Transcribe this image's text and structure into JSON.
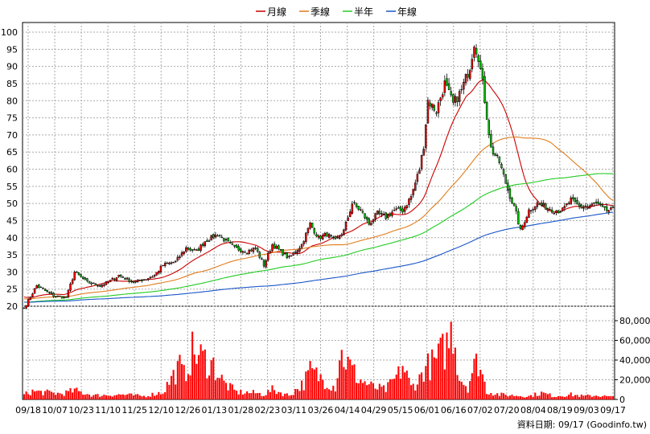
{
  "chart_data": {
    "type": "candlestick",
    "legend": [
      {
        "name": "月線",
        "color": "#cc0000"
      },
      {
        "name": "季線",
        "color": "#e07b1a"
      },
      {
        "name": "半年",
        "color": "#22cc22"
      },
      {
        "name": "年線",
        "color": "#1a56c8"
      }
    ],
    "price_axis": {
      "min": 20,
      "max": 100,
      "ticks": [
        20,
        25,
        30,
        35,
        40,
        45,
        50,
        55,
        60,
        65,
        70,
        75,
        80,
        85,
        90,
        95,
        100
      ]
    },
    "volume_axis": {
      "min": 0,
      "max": 80000,
      "ticks": [
        0,
        20000,
        40000,
        60000,
        80000
      ],
      "tick_labels": [
        "0",
        "20,000",
        "40,000",
        "60,000",
        "80,000"
      ]
    },
    "x_labels": [
      "09/18",
      "10/07",
      "10/23",
      "11/10",
      "11/25",
      "12/10",
      "12/26",
      "01/13",
      "01/28",
      "02/23",
      "03/11",
      "03/26",
      "04/14",
      "04/29",
      "05/15",
      "06/01",
      "06/16",
      "07/02",
      "07/20",
      "08/04",
      "08/19",
      "09/03",
      "09/17"
    ],
    "close_anchors": [
      [
        0,
        19.5
      ],
      [
        6,
        26
      ],
      [
        14,
        23
      ],
      [
        20,
        22.5
      ],
      [
        24,
        30
      ],
      [
        30,
        27
      ],
      [
        36,
        26
      ],
      [
        40,
        27
      ],
      [
        45,
        29
      ],
      [
        52,
        27
      ],
      [
        58,
        28
      ],
      [
        62,
        29
      ],
      [
        66,
        32
      ],
      [
        72,
        33
      ],
      [
        77,
        37
      ],
      [
        82,
        36
      ],
      [
        86,
        39
      ],
      [
        92,
        41
      ],
      [
        96,
        39
      ],
      [
        100,
        37
      ],
      [
        106,
        36
      ],
      [
        110,
        37
      ],
      [
        114,
        32
      ],
      [
        118,
        38
      ],
      [
        122,
        36
      ],
      [
        126,
        34
      ],
      [
        132,
        38
      ],
      [
        136,
        44
      ],
      [
        140,
        40
      ],
      [
        144,
        41
      ],
      [
        148,
        39
      ],
      [
        152,
        42
      ],
      [
        156,
        50
      ],
      [
        160,
        48
      ],
      [
        164,
        44
      ],
      [
        168,
        47
      ],
      [
        172,
        46
      ],
      [
        176,
        48
      ],
      [
        180,
        48
      ],
      [
        184,
        52
      ],
      [
        188,
        60
      ],
      [
        190,
        67
      ],
      [
        192,
        80
      ],
      [
        196,
        77
      ],
      [
        200,
        85
      ],
      [
        204,
        79
      ],
      [
        208,
        83
      ],
      [
        212,
        90
      ],
      [
        214,
        97
      ],
      [
        216,
        93
      ],
      [
        218,
        85
      ],
      [
        222,
        66
      ],
      [
        226,
        62
      ],
      [
        230,
        54
      ],
      [
        234,
        47
      ],
      [
        236,
        42
      ],
      [
        240,
        48
      ],
      [
        244,
        50
      ],
      [
        248,
        49
      ],
      [
        252,
        48
      ],
      [
        256,
        48
      ],
      [
        260,
        51
      ],
      [
        264,
        49
      ],
      [
        268,
        49
      ],
      [
        272,
        50
      ],
      [
        276,
        48
      ],
      [
        280,
        48
      ]
    ],
    "volume_peaks": [
      [
        0,
        6000
      ],
      [
        4,
        10000
      ],
      [
        18,
        7000
      ],
      [
        24,
        11000
      ],
      [
        33,
        5000
      ],
      [
        47,
        6000
      ],
      [
        57,
        4000
      ],
      [
        66,
        9000
      ],
      [
        70,
        26000
      ],
      [
        74,
        40000
      ],
      [
        76,
        30000
      ],
      [
        80,
        58000
      ],
      [
        84,
        52000
      ],
      [
        90,
        42000
      ],
      [
        95,
        20000
      ],
      [
        101,
        9000
      ],
      [
        110,
        8000
      ],
      [
        114,
        6000
      ],
      [
        118,
        12000
      ],
      [
        126,
        5000
      ],
      [
        133,
        20000
      ],
      [
        136,
        35000
      ],
      [
        142,
        25000
      ],
      [
        148,
        15000
      ],
      [
        150,
        55000
      ],
      [
        152,
        52000
      ],
      [
        155,
        40000
      ],
      [
        159,
        25000
      ],
      [
        166,
        15000
      ],
      [
        172,
        12000
      ],
      [
        178,
        30000
      ],
      [
        180,
        42000
      ],
      [
        184,
        15000
      ],
      [
        188,
        25000
      ],
      [
        190,
        38000
      ],
      [
        195,
        45000
      ],
      [
        200,
        62000
      ],
      [
        202,
        72000
      ],
      [
        204,
        90000
      ],
      [
        207,
        28000
      ],
      [
        211,
        15000
      ],
      [
        213,
        35000
      ],
      [
        216,
        48000
      ],
      [
        220,
        10000
      ],
      [
        226,
        6000
      ],
      [
        232,
        5000
      ],
      [
        240,
        4000
      ],
      [
        246,
        8000
      ],
      [
        252,
        4000
      ],
      [
        260,
        6000
      ],
      [
        266,
        4000
      ],
      [
        272,
        5000
      ],
      [
        280,
        3000
      ]
    ],
    "footer_text": "資料日期: 09/17  (Goodinfo.tw)"
  }
}
